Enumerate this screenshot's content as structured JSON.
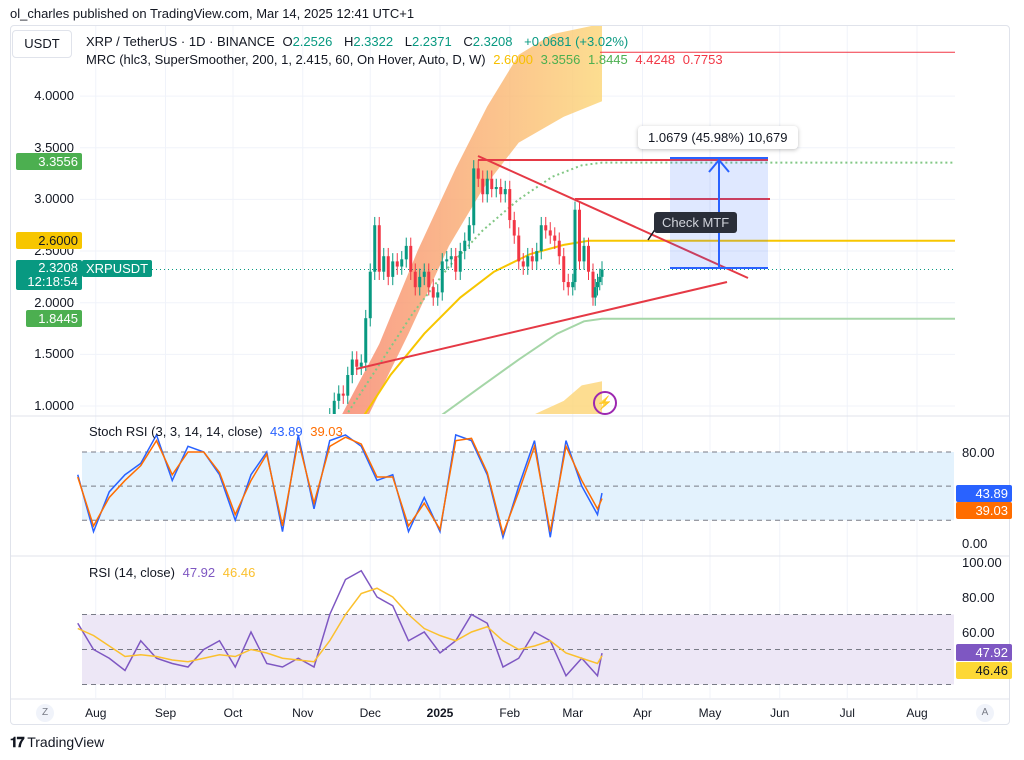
{
  "publisher": "ol_charles published on TradingView.com, Mar 14, 2025 12:41 UTC+1",
  "currency": "USDT",
  "symbol": {
    "name": "XRP / TetherUS · 1D · BINANCE",
    "o_label": "O",
    "o": "2.2526",
    "h_label": "H",
    "h": "2.3322",
    "l_label": "L",
    "l": "2.2371",
    "c_label": "C",
    "c": "2.3208",
    "change": "+0.0681 (+3.02%)"
  },
  "mrc": {
    "label": "MRC (hlc3, SuperSmoother, 200, 1, 2.415, 60, On Hover, Auto, D, W)",
    "v1": "2.6000",
    "v2": "3.3556",
    "v3": "1.8445",
    "v4": "4.4248",
    "v5": "0.7753"
  },
  "price_badges": {
    "upper": "3.3556",
    "mean": "2.6000",
    "last": "2.3208",
    "countdown": "12:18:54",
    "ticker": "XRPUSDT",
    "lower": "1.8445"
  },
  "measure": {
    "label": "1.0679 (45.98%) 10,679"
  },
  "note": {
    "label": "Check MTF"
  },
  "stoch": {
    "label": "Stoch RSI (3, 3, 14, 14, close)",
    "k": "43.89",
    "d": "39.03",
    "axis": [
      "80.00",
      "0.00"
    ],
    "color_k": "#2962ff",
    "color_d": "#ff6d00"
  },
  "rsi": {
    "label": "RSI (14, close)",
    "rsi": "47.92",
    "ma": "46.46",
    "axis": [
      "100.00",
      "80.00",
      "60.00"
    ],
    "color_rsi": "#7e57c2",
    "color_ma": "#fbc02d"
  },
  "time_axis": {
    "labels": [
      "Aug",
      "Sep",
      "Oct",
      "Nov",
      "Dec",
      "2025",
      "Feb",
      "Mar",
      "Apr",
      "May",
      "Jun",
      "Jul",
      "Aug"
    ],
    "zoom_btn": "Z",
    "auto_btn": "A"
  },
  "footer": {
    "brand": "TradingView"
  },
  "chart_data": [
    {
      "type": "candlestick",
      "title": "XRP / TetherUS · 1D · BINANCE",
      "y_ticks": [
        "4.0000",
        "3.5000",
        "3.0000",
        "2.5000",
        "2.0000",
        "1.5000",
        "1.0000"
      ],
      "ylim": [
        0.9,
        4.7
      ],
      "colors": {
        "up": "#089981",
        "down": "#f23645"
      },
      "closes": [
        [
          "2024-11-13",
          0.9
        ],
        [
          "2024-11-15",
          1.05
        ],
        [
          "2024-11-17",
          1.12
        ],
        [
          "2024-11-19",
          1.1
        ],
        [
          "2024-11-21",
          1.3
        ],
        [
          "2024-11-23",
          1.45
        ],
        [
          "2024-11-25",
          1.38
        ],
        [
          "2024-11-27",
          1.42
        ],
        [
          "2024-11-29",
          1.85
        ],
        [
          "2024-12-01",
          2.3
        ],
        [
          "2024-12-03",
          2.75
        ],
        [
          "2024-12-05",
          2.3
        ],
        [
          "2024-12-07",
          2.45
        ],
        [
          "2024-12-09",
          2.25
        ],
        [
          "2024-12-11",
          2.4
        ],
        [
          "2024-12-13",
          2.35
        ],
        [
          "2024-12-15",
          2.42
        ],
        [
          "2024-12-17",
          2.55
        ],
        [
          "2024-12-19",
          2.3
        ],
        [
          "2024-12-21",
          2.15
        ],
        [
          "2024-12-23",
          2.25
        ],
        [
          "2024-12-25",
          2.3
        ],
        [
          "2024-12-27",
          2.15
        ],
        [
          "2024-12-29",
          2.05
        ],
        [
          "2024-12-31",
          2.1
        ],
        [
          "2025-01-02",
          2.4
        ],
        [
          "2025-01-04",
          2.42
        ],
        [
          "2025-01-06",
          2.45
        ],
        [
          "2025-01-08",
          2.3
        ],
        [
          "2025-01-10",
          2.5
        ],
        [
          "2025-01-12",
          2.6
        ],
        [
          "2025-01-14",
          2.75
        ],
        [
          "2025-01-16",
          3.3
        ],
        [
          "2025-01-18",
          3.2
        ],
        [
          "2025-01-20",
          3.05
        ],
        [
          "2025-01-22",
          3.2
        ],
        [
          "2025-01-24",
          3.1
        ],
        [
          "2025-01-26",
          3.12
        ],
        [
          "2025-01-28",
          3.05
        ],
        [
          "2025-01-30",
          3.1
        ],
        [
          "2025-02-01",
          2.8
        ],
        [
          "2025-02-03",
          2.65
        ],
        [
          "2025-02-05",
          2.4
        ],
        [
          "2025-02-07",
          2.35
        ],
        [
          "2025-02-09",
          2.45
        ],
        [
          "2025-02-11",
          2.4
        ],
        [
          "2025-02-13",
          2.5
        ],
        [
          "2025-02-15",
          2.75
        ],
        [
          "2025-02-17",
          2.7
        ],
        [
          "2025-02-19",
          2.65
        ],
        [
          "2025-02-21",
          2.6
        ],
        [
          "2025-02-23",
          2.45
        ],
        [
          "2025-02-25",
          2.2
        ],
        [
          "2025-02-27",
          2.15
        ],
        [
          "2025-03-01",
          2.2
        ],
        [
          "2025-03-02",
          2.9
        ],
        [
          "2025-03-04",
          2.4
        ],
        [
          "2025-03-06",
          2.55
        ],
        [
          "2025-03-08",
          2.3
        ],
        [
          "2025-03-10",
          2.05
        ],
        [
          "2025-03-11",
          2.15
        ],
        [
          "2025-03-12",
          2.2
        ],
        [
          "2025-03-13",
          2.25
        ],
        [
          "2025-03-14",
          2.3208
        ]
      ],
      "mrc_mean": [
        [
          "2024-11-28",
          0.9
        ],
        [
          "2024-12-10",
          1.3
        ],
        [
          "2024-12-25",
          1.7
        ],
        [
          "2025-01-10",
          2.05
        ],
        [
          "2025-01-25",
          2.3
        ],
        [
          "2025-02-10",
          2.47
        ],
        [
          "2025-02-25",
          2.56
        ],
        [
          "2025-03-08",
          2.6
        ],
        [
          "2025-03-14",
          2.6
        ],
        [
          "2025-08-31",
          2.6
        ]
      ],
      "mrc_upper": [
        [
          "2024-11-20",
          0.9
        ],
        [
          "2024-12-05",
          1.4
        ],
        [
          "2024-12-20",
          1.9
        ],
        [
          "2025-01-05",
          2.35
        ],
        [
          "2025-01-20",
          2.7
        ],
        [
          "2025-02-05",
          3.0
        ],
        [
          "2025-02-20",
          3.22
        ],
        [
          "2025-03-05",
          3.33
        ],
        [
          "2025-03-14",
          3.3556
        ],
        [
          "2025-08-31",
          3.3556
        ]
      ],
      "mrc_lower": [
        [
          "2025-01-01",
          0.9
        ],
        [
          "2025-01-20",
          1.2
        ],
        [
          "2025-02-05",
          1.45
        ],
        [
          "2025-02-22",
          1.7
        ],
        [
          "2025-03-06",
          1.82
        ],
        [
          "2025-03-14",
          1.8445
        ],
        [
          "2025-08-31",
          1.8445
        ]
      ],
      "mrc_upper_cloud_outer": [
        [
          "2024-11-18",
          0.9
        ],
        [
          "2024-12-05",
          1.6
        ],
        [
          "2024-12-22",
          2.5
        ],
        [
          "2025-01-08",
          3.3
        ],
        [
          "2025-01-22",
          3.9
        ],
        [
          "2025-02-05",
          4.4
        ],
        [
          "2025-02-20",
          4.6
        ],
        [
          "2025-03-14",
          4.7
        ]
      ],
      "mrc_upper_cloud_inner": [
        [
          "2024-11-30",
          0.9
        ],
        [
          "2024-12-18",
          1.7
        ],
        [
          "2025-01-05",
          2.55
        ],
        [
          "2025-01-20",
          3.1
        ],
        [
          "2025-02-05",
          3.55
        ],
        [
          "2025-02-25",
          3.8
        ],
        [
          "2025-03-14",
          3.95
        ]
      ],
      "mrc_lower_cloud_top": [
        [
          "2025-02-10",
          0.9
        ],
        [
          "2025-02-25",
          1.05
        ],
        [
          "2025-03-05",
          1.2
        ],
        [
          "2025-03-14",
          1.24
        ]
      ],
      "level_line": 4.4248
    },
    {
      "type": "line",
      "title": "Stoch RSI (3, 3, 14, 14, close)",
      "ylim": [
        0,
        100
      ],
      "bands": [
        20,
        50,
        80
      ],
      "x": [
        "2024-07-24",
        "2024-07-31",
        "2024-08-07",
        "2024-08-14",
        "2024-08-21",
        "2024-08-28",
        "2024-09-04",
        "2024-09-11",
        "2024-09-18",
        "2024-09-25",
        "2024-10-02",
        "2024-10-09",
        "2024-10-16",
        "2024-10-23",
        "2024-10-30",
        "2024-11-06",
        "2024-11-13",
        "2024-11-20",
        "2024-11-27",
        "2024-12-04",
        "2024-12-11",
        "2024-12-18",
        "2024-12-25",
        "2025-01-01",
        "2025-01-08",
        "2025-01-15",
        "2025-01-22",
        "2025-01-29",
        "2025-02-05",
        "2025-02-12",
        "2025-02-19",
        "2025-02-26",
        "2025-03-05",
        "2025-03-12",
        "2025-03-14"
      ],
      "series": [
        {
          "name": "K",
          "values": [
            60,
            10,
            45,
            60,
            70,
            95,
            55,
            85,
            80,
            60,
            20,
            60,
            80,
            10,
            95,
            30,
            90,
            95,
            85,
            55,
            60,
            10,
            40,
            10,
            95,
            90,
            60,
            5,
            50,
            90,
            5,
            90,
            50,
            25,
            43.89
          ]
        },
        {
          "name": "D",
          "values": [
            58,
            15,
            40,
            55,
            68,
            90,
            60,
            80,
            80,
            62,
            25,
            55,
            78,
            15,
            90,
            35,
            85,
            93,
            87,
            58,
            58,
            15,
            35,
            12,
            90,
            92,
            62,
            8,
            45,
            85,
            10,
            85,
            55,
            30,
            39.03
          ]
        }
      ]
    },
    {
      "type": "line",
      "title": "RSI (14, close)",
      "ylim": [
        20,
        100
      ],
      "bands": [
        30,
        50,
        70
      ],
      "series": [
        {
          "name": "RSI",
          "values": [
            65,
            50,
            45,
            38,
            55,
            45,
            42,
            40,
            50,
            55,
            40,
            60,
            42,
            40,
            45,
            40,
            70,
            90,
            95,
            80,
            75,
            55,
            60,
            48,
            55,
            70,
            65,
            40,
            45,
            60,
            55,
            35,
            45,
            35,
            47.92
          ]
        },
        {
          "name": "MA",
          "values": [
            62,
            58,
            52,
            46,
            47,
            46,
            44,
            43,
            45,
            47,
            46,
            50,
            48,
            45,
            44,
            43,
            55,
            70,
            82,
            85,
            80,
            70,
            62,
            58,
            55,
            60,
            63,
            55,
            50,
            52,
            55,
            48,
            45,
            42,
            46.46
          ]
        }
      ]
    }
  ]
}
